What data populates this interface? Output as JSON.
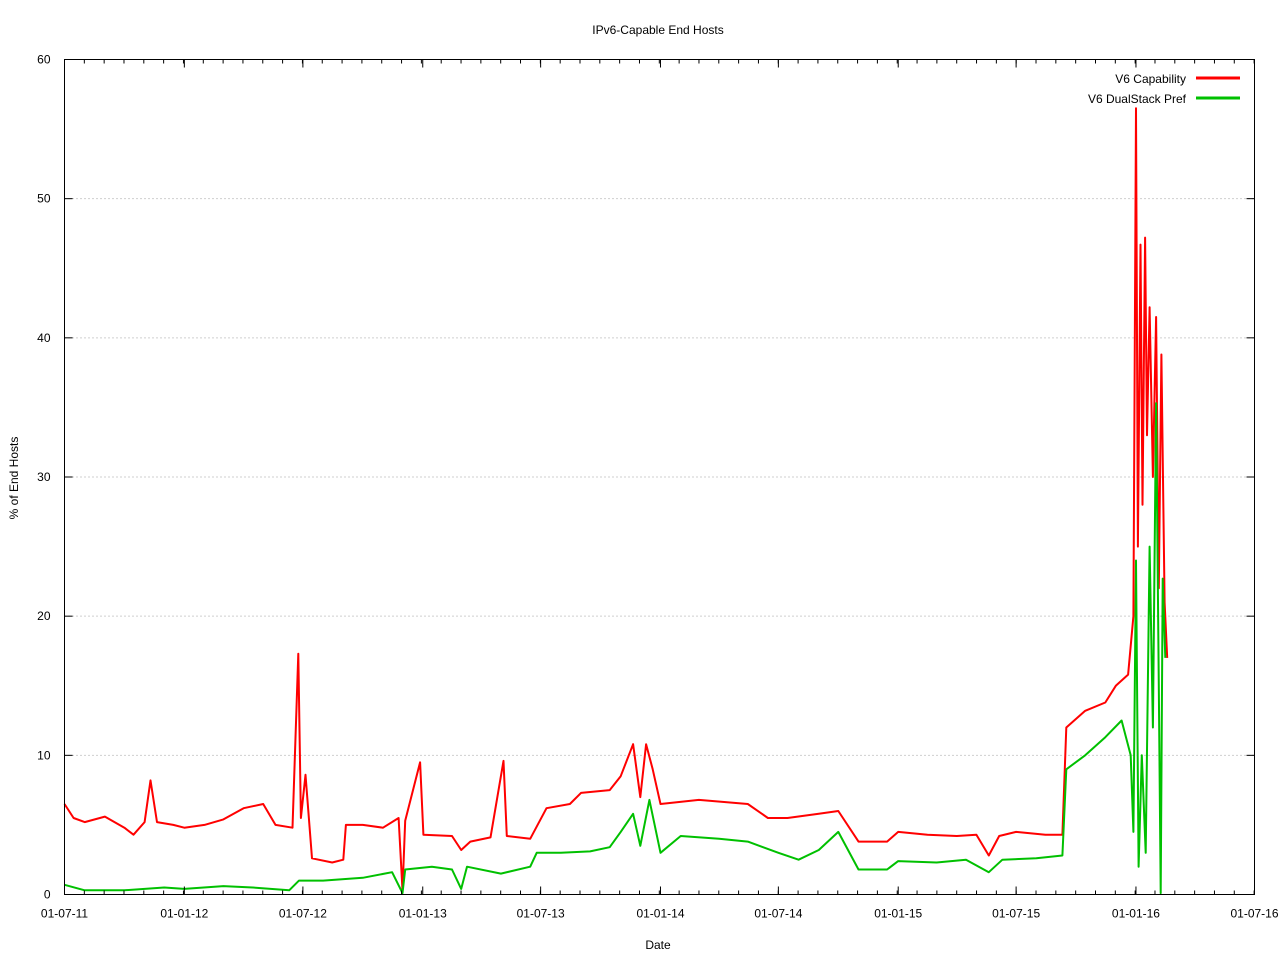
{
  "chart_data": {
    "type": "line",
    "title": "IPv6-Capable End Hosts",
    "xlabel": "Date",
    "ylabel": "% of End Hosts",
    "ylim": [
      0,
      60
    ],
    "yticks": [
      0,
      10,
      20,
      30,
      40,
      50,
      60
    ],
    "xlim": [
      "2011-07-01",
      "2016-07-01"
    ],
    "xticks": [
      {
        "date": "2011-07-01",
        "label": "01-07-11"
      },
      {
        "date": "2012-01-01",
        "label": "01-01-12"
      },
      {
        "date": "2012-07-01",
        "label": "01-07-12"
      },
      {
        "date": "2013-01-01",
        "label": "01-01-13"
      },
      {
        "date": "2013-07-01",
        "label": "01-07-13"
      },
      {
        "date": "2014-01-01",
        "label": "01-01-14"
      },
      {
        "date": "2014-07-01",
        "label": "01-07-14"
      },
      {
        "date": "2015-01-01",
        "label": "01-01-15"
      },
      {
        "date": "2015-07-01",
        "label": "01-07-15"
      },
      {
        "date": "2016-01-01",
        "label": "01-01-16"
      },
      {
        "date": "2016-07-01",
        "label": "01-07-16"
      }
    ],
    "grid": "horizontal dotted",
    "legend_position": "top-right",
    "series": [
      {
        "name": "V6 Capability",
        "color": "#ff0000",
        "points": [
          [
            "2011-07-01",
            6.5
          ],
          [
            "2011-07-15",
            5.5
          ],
          [
            "2011-08-01",
            5.2
          ],
          [
            "2011-09-01",
            5.6
          ],
          [
            "2011-10-01",
            4.8
          ],
          [
            "2011-10-15",
            4.3
          ],
          [
            "2011-11-01",
            5.2
          ],
          [
            "2011-11-10",
            8.2
          ],
          [
            "2011-11-20",
            5.2
          ],
          [
            "2011-12-15",
            5.0
          ],
          [
            "2012-01-01",
            4.8
          ],
          [
            "2012-02-01",
            5.0
          ],
          [
            "2012-03-01",
            5.4
          ],
          [
            "2012-04-01",
            6.2
          ],
          [
            "2012-05-01",
            6.5
          ],
          [
            "2012-05-20",
            5.0
          ],
          [
            "2012-06-15",
            4.8
          ],
          [
            "2012-06-24",
            17.3
          ],
          [
            "2012-06-28",
            5.5
          ],
          [
            "2012-07-05",
            8.6
          ],
          [
            "2012-07-15",
            2.6
          ],
          [
            "2012-08-15",
            2.3
          ],
          [
            "2012-09-01",
            2.5
          ],
          [
            "2012-09-05",
            5.0
          ],
          [
            "2012-10-01",
            5.0
          ],
          [
            "2012-11-01",
            4.8
          ],
          [
            "2012-11-25",
            5.5
          ],
          [
            "2012-12-01",
            0.3
          ],
          [
            "2012-12-05",
            5.3
          ],
          [
            "2012-12-28",
            9.5
          ],
          [
            "2013-01-02",
            4.3
          ],
          [
            "2013-02-15",
            4.2
          ],
          [
            "2013-03-01",
            3.2
          ],
          [
            "2013-03-15",
            3.8
          ],
          [
            "2013-04-15",
            4.1
          ],
          [
            "2013-05-05",
            9.6
          ],
          [
            "2013-05-10",
            4.2
          ],
          [
            "2013-06-15",
            4.0
          ],
          [
            "2013-07-10",
            6.2
          ],
          [
            "2013-08-15",
            6.5
          ],
          [
            "2013-09-01",
            7.3
          ],
          [
            "2013-10-15",
            7.5
          ],
          [
            "2013-11-01",
            8.5
          ],
          [
            "2013-11-20",
            10.8
          ],
          [
            "2013-12-01",
            7.0
          ],
          [
            "2013-12-10",
            10.8
          ],
          [
            "2013-12-20",
            9.0
          ],
          [
            "2014-01-01",
            6.5
          ],
          [
            "2014-03-01",
            6.8
          ],
          [
            "2014-05-15",
            6.5
          ],
          [
            "2014-06-15",
            5.5
          ],
          [
            "2014-07-15",
            5.5
          ],
          [
            "2014-09-01",
            5.8
          ],
          [
            "2014-10-01",
            6.0
          ],
          [
            "2014-11-01",
            3.8
          ],
          [
            "2014-12-15",
            3.8
          ],
          [
            "2015-01-01",
            4.5
          ],
          [
            "2015-02-15",
            4.3
          ],
          [
            "2015-04-01",
            4.2
          ],
          [
            "2015-05-01",
            4.3
          ],
          [
            "2015-05-20",
            2.8
          ],
          [
            "2015-06-05",
            4.2
          ],
          [
            "2015-07-01",
            4.5
          ],
          [
            "2015-08-15",
            4.3
          ],
          [
            "2015-09-10",
            4.3
          ],
          [
            "2015-09-16",
            12.0
          ],
          [
            "2015-10-15",
            13.2
          ],
          [
            "2015-11-15",
            13.8
          ],
          [
            "2015-12-01",
            15.0
          ],
          [
            "2015-12-20",
            15.8
          ],
          [
            "2015-12-28",
            20.0
          ],
          [
            "2016-01-01",
            56.5
          ],
          [
            "2016-01-04",
            25.0
          ],
          [
            "2016-01-08",
            46.7
          ],
          [
            "2016-01-11",
            28.0
          ],
          [
            "2016-01-15",
            47.2
          ],
          [
            "2016-01-18",
            33.0
          ],
          [
            "2016-01-22",
            42.2
          ],
          [
            "2016-01-27",
            30.0
          ],
          [
            "2016-02-01",
            41.5
          ],
          [
            "2016-02-05",
            22.0
          ],
          [
            "2016-02-09",
            38.8
          ],
          [
            "2016-02-14",
            21.0
          ],
          [
            "2016-02-18",
            17.0
          ]
        ]
      },
      {
        "name": "V6 DualStack Pref",
        "color": "#00c000",
        "points": [
          [
            "2011-07-01",
            0.7
          ],
          [
            "2011-08-01",
            0.3
          ],
          [
            "2011-10-01",
            0.3
          ],
          [
            "2011-12-01",
            0.5
          ],
          [
            "2012-01-01",
            0.4
          ],
          [
            "2012-03-01",
            0.6
          ],
          [
            "2012-04-15",
            0.5
          ],
          [
            "2012-06-10",
            0.3
          ],
          [
            "2012-06-25",
            1.0
          ],
          [
            "2012-08-01",
            1.0
          ],
          [
            "2012-10-01",
            1.2
          ],
          [
            "2012-11-15",
            1.6
          ],
          [
            "2012-12-01",
            0.1
          ],
          [
            "2012-12-05",
            1.8
          ],
          [
            "2013-01-15",
            2.0
          ],
          [
            "2013-02-15",
            1.8
          ],
          [
            "2013-03-01",
            0.4
          ],
          [
            "2013-03-10",
            2.0
          ],
          [
            "2013-05-01",
            1.5
          ],
          [
            "2013-06-15",
            2.0
          ],
          [
            "2013-06-25",
            3.0
          ],
          [
            "2013-08-01",
            3.0
          ],
          [
            "2013-09-15",
            3.1
          ],
          [
            "2013-10-15",
            3.4
          ],
          [
            "2013-11-01",
            4.5
          ],
          [
            "2013-11-20",
            5.8
          ],
          [
            "2013-12-01",
            3.5
          ],
          [
            "2013-12-15",
            6.8
          ],
          [
            "2014-01-01",
            3.0
          ],
          [
            "2014-02-01",
            4.2
          ],
          [
            "2014-04-01",
            4.0
          ],
          [
            "2014-05-15",
            3.8
          ],
          [
            "2014-07-01",
            3.0
          ],
          [
            "2014-08-01",
            2.5
          ],
          [
            "2014-09-01",
            3.2
          ],
          [
            "2014-10-01",
            4.5
          ],
          [
            "2014-11-01",
            1.8
          ],
          [
            "2014-12-15",
            1.8
          ],
          [
            "2015-01-01",
            2.4
          ],
          [
            "2015-03-01",
            2.3
          ],
          [
            "2015-04-15",
            2.5
          ],
          [
            "2015-05-20",
            1.6
          ],
          [
            "2015-06-10",
            2.5
          ],
          [
            "2015-08-01",
            2.6
          ],
          [
            "2015-09-10",
            2.8
          ],
          [
            "2015-09-16",
            9.0
          ],
          [
            "2015-10-15",
            10.0
          ],
          [
            "2015-11-15",
            11.3
          ],
          [
            "2015-12-10",
            12.5
          ],
          [
            "2015-12-24",
            10.0
          ],
          [
            "2015-12-28",
            4.5
          ],
          [
            "2016-01-01",
            24.0
          ],
          [
            "2016-01-05",
            2.0
          ],
          [
            "2016-01-10",
            10.0
          ],
          [
            "2016-01-16",
            3.0
          ],
          [
            "2016-01-22",
            25.0
          ],
          [
            "2016-01-27",
            12.0
          ],
          [
            "2016-02-01",
            35.3
          ],
          [
            "2016-02-05",
            15.0
          ],
          [
            "2016-02-08",
            0.1
          ],
          [
            "2016-02-11",
            22.7
          ],
          [
            "2016-02-15",
            17.0
          ]
        ]
      }
    ]
  }
}
